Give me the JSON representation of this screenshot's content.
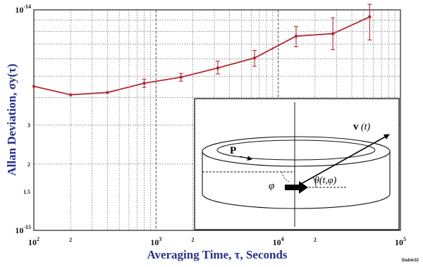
{
  "chart_data": {
    "type": "line",
    "xlabel": "Averaging Time, τ, Seconds",
    "ylabel": "Allan Deviation, σy(τ)",
    "x_scale": "log",
    "y_scale": "log",
    "xlim": [
      100,
      100000
    ],
    "ylim": [
      1e-15,
      1e-14
    ],
    "grid": true,
    "x": [
      100,
      200,
      400,
      800,
      1600,
      3200,
      6400,
      14000,
      28000,
      56000
    ],
    "y": [
      4.5e-15,
      4.12e-15,
      4.22e-15,
      4.65e-15,
      4.95e-15,
      5.45e-15,
      6.05e-15,
      7.6e-15,
      7.8e-15,
      9.3e-15
    ],
    "y_err_low": [
      null,
      null,
      null,
      4.45e-15,
      4.75e-15,
      5.12e-15,
      5.55e-15,
      6.8e-15,
      6.6e-15,
      7.3e-15
    ],
    "y_err_high": [
      null,
      null,
      null,
      4.85e-15,
      5.15e-15,
      5.85e-15,
      6.55e-15,
      8.4e-15,
      9.2e-15,
      1.06e-14
    ],
    "x_ticks": [
      {
        "value": 100,
        "base": "10",
        "exp": "2"
      },
      {
        "value": 200,
        "label": "2"
      },
      {
        "value": 1000,
        "base": "10",
        "exp": "3"
      },
      {
        "value": 2000,
        "label": "2"
      },
      {
        "value": 10000,
        "base": "10",
        "exp": "4"
      },
      {
        "value": 20000,
        "label": "2"
      },
      {
        "value": 100000,
        "base": "10",
        "exp": "5"
      }
    ],
    "y_ticks": [
      {
        "value": 1e-15,
        "base": "10",
        "exp": "-15"
      },
      {
        "value": 1.5e-15,
        "label": "1.5"
      },
      {
        "value": 2e-15,
        "label": "2"
      },
      {
        "value": 3e-15,
        "label": "3"
      },
      {
        "value": 1e-14,
        "base": "10",
        "exp": "-14"
      }
    ],
    "series_color": "#b02a30"
  },
  "inset": {
    "labels": {
      "vector": "v",
      "vector_arg": "(t)",
      "polarization": "P",
      "angle_phi": "φ",
      "angle_theta": "θ(t,φ)"
    }
  },
  "footer_tag": "Stable32"
}
